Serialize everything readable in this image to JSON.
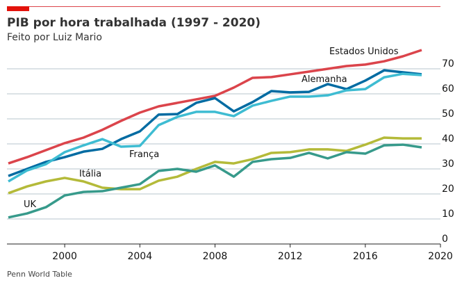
{
  "chart_data": {
    "type": "line",
    "title": "PIB por hora trabalhada (1997 - 2020)",
    "subtitle": "Feito por Luiz Mario",
    "source": "Penn World Table",
    "x": [
      1997,
      1998,
      1999,
      2000,
      2001,
      2002,
      2003,
      2004,
      2005,
      2006,
      2007,
      2008,
      2009,
      2010,
      2011,
      2012,
      2013,
      2014,
      2015,
      2016,
      2017,
      2018,
      2019
    ],
    "series": [
      {
        "name": "Estados Unidos",
        "color": "#db444b",
        "values": [
          32.2,
          34.7,
          37.5,
          40.3,
          42.5,
          45.6,
          49.2,
          52.5,
          55,
          56.4,
          57.8,
          59.2,
          62.5,
          66.4,
          66.7,
          67.8,
          68.9,
          70,
          71.1,
          71.7,
          73,
          75,
          77.5
        ]
      },
      {
        "name": "Alemanha",
        "color": "#006ba2",
        "values": [
          27.2,
          30,
          32.8,
          34.7,
          36.9,
          38,
          41.9,
          45,
          51.7,
          51.9,
          56.4,
          58.3,
          53,
          56.7,
          61.1,
          60.6,
          60.8,
          63.9,
          61.9,
          65.3,
          69.4,
          68.6,
          67.8
        ]
      },
      {
        "name": "França",
        "color": "#3ebcd2",
        "values": [
          25,
          29.4,
          31.9,
          36.7,
          39.4,
          41.9,
          38.9,
          39.2,
          47.5,
          50.8,
          52.8,
          52.8,
          51.1,
          55.3,
          57.2,
          58.9,
          58.9,
          59.4,
          61.4,
          61.9,
          66.6,
          68,
          67.5
        ]
      },
      {
        "name": "Itália",
        "color": "#b4ba39",
        "values": [
          20.3,
          23,
          25,
          26.4,
          25,
          22.5,
          21.9,
          21.9,
          25.3,
          26.9,
          30,
          32.8,
          32.2,
          33.9,
          36.4,
          36.7,
          37.8,
          37.8,
          37.2,
          39.7,
          42.5,
          42.2,
          42.2
        ]
      },
      {
        "name": "UK",
        "color": "#379a8b",
        "values": [
          10.6,
          12.2,
          14.7,
          19.4,
          20.8,
          21.1,
          22.5,
          23.9,
          29.2,
          30,
          28.9,
          31.4,
          26.9,
          32.8,
          33.9,
          34.4,
          36.4,
          34.2,
          36.7,
          36.1,
          39.4,
          39.7,
          38.6
        ]
      }
    ],
    "xlim": [
      1997,
      2020
    ],
    "xticks": [
      2000,
      2004,
      2008,
      2012,
      2016,
      2020
    ],
    "ylim": [
      0,
      80
    ],
    "yticks": [
      0,
      10,
      20,
      30,
      40,
      50,
      60,
      70
    ],
    "grid": true
  }
}
